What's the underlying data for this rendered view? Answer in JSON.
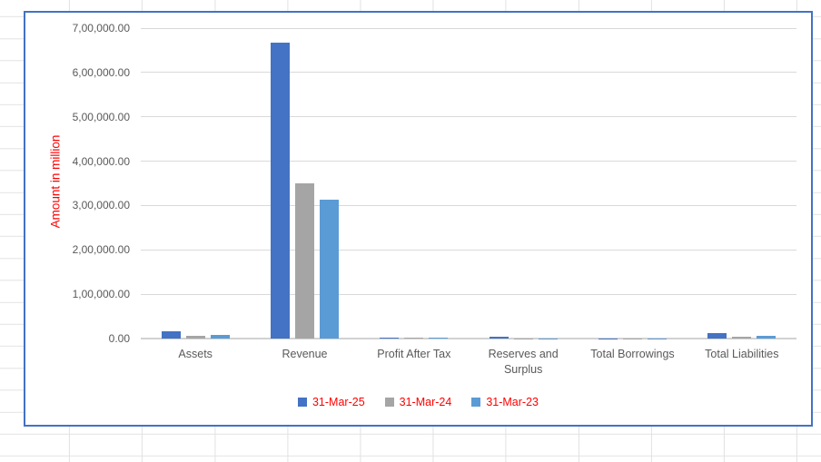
{
  "colors": {
    "series_blue": "#4472C4",
    "series_gray": "#A5A5A5",
    "series_lightblue": "#5B9BD5",
    "axis_title_red": "#FF0000",
    "legend_text_red": "#FF0000",
    "tick_text": "#595959",
    "chart_gridline": "#D9D9D9",
    "chart_border": "#4472C4",
    "sheet_gridline": "#E2E2E2"
  },
  "chart_data": {
    "type": "bar",
    "title": "",
    "xlabel": "",
    "ylabel": "Amount in million",
    "ylim": [
      0,
      700000
    ],
    "ytick_step": 100000,
    "yticks_top_to_bottom": [
      "7,00,000.00",
      "6,00,000.00",
      "5,00,000.00",
      "4,00,000.00",
      "3,00,000.00",
      "2,00,000.00",
      "1,00,000.00",
      "0.00"
    ],
    "grid": true,
    "legend_position": "bottom",
    "categories": [
      "Assets",
      "Revenue",
      "Profit After Tax",
      "Reserves and Surplus",
      "Total Borrowings",
      "Total Liabilities"
    ],
    "series": [
      {
        "name": "31-Mar-25",
        "color": "#4472C4",
        "values": [
          17000,
          668000,
          2000,
          4100,
          400,
          13000
        ]
      },
      {
        "name": "31-Mar-24",
        "color": "#A5A5A5",
        "values": [
          7000,
          350000,
          1500,
          900,
          300,
          5100
        ]
      },
      {
        "name": "31-Mar-23",
        "color": "#5B9BD5",
        "values": [
          7600,
          313000,
          1400,
          800,
          250,
          6300
        ]
      }
    ]
  }
}
